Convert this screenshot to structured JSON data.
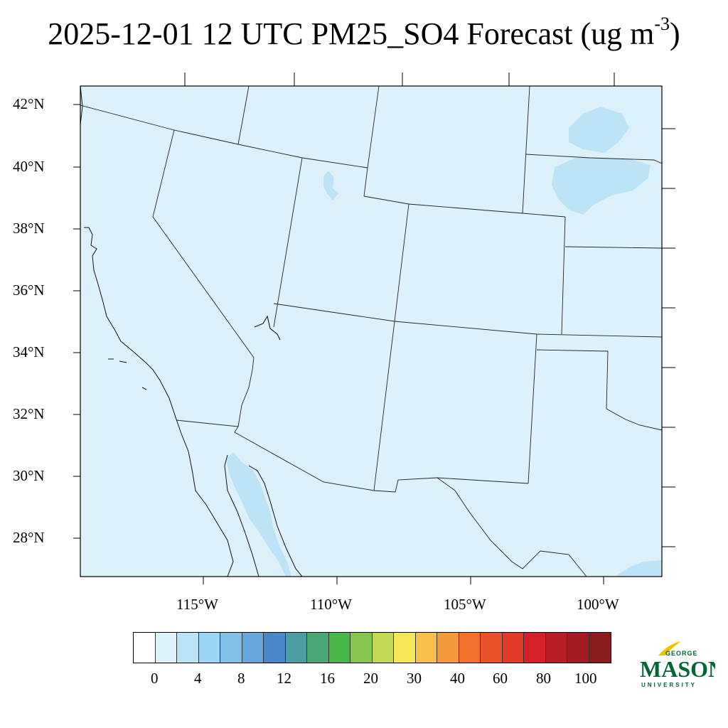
{
  "title": {
    "main": "2025-12-01 12 UTC PM25_SO4 Forecast (ug m",
    "sup": "-3",
    "close": ")"
  },
  "map": {
    "lat_labels": [
      "42°N",
      "40°N",
      "38°N",
      "36°N",
      "34°N",
      "32°N",
      "30°N",
      "28°N"
    ],
    "lon_labels": [
      "115°W",
      "110°W",
      "105°W",
      "100°W"
    ],
    "field_color": "#ddf1fb",
    "water_color": "#bde3f6"
  },
  "colorbar": {
    "colors": [
      "#ffffff",
      "#ddf1fb",
      "#bde3f6",
      "#9dd6f4",
      "#80bfe6",
      "#66a6db",
      "#4a87c9",
      "#4c9ea2",
      "#4aa774",
      "#49b649",
      "#86c64f",
      "#c3d956",
      "#f7e758",
      "#f8bf4b",
      "#f59a3c",
      "#f26f2c",
      "#ea5029",
      "#e23a28",
      "#d61f28",
      "#b81e25",
      "#a31b22",
      "#8b1a1a"
    ],
    "labels": [
      "0",
      "4",
      "8",
      "12",
      "16",
      "20",
      "30",
      "40",
      "60",
      "80",
      "100"
    ]
  },
  "logo": {
    "top": "GEORGE",
    "main": "MASON",
    "bottom": "UNIVERSITY",
    "color": "#006633",
    "accent": "#f2c300"
  }
}
